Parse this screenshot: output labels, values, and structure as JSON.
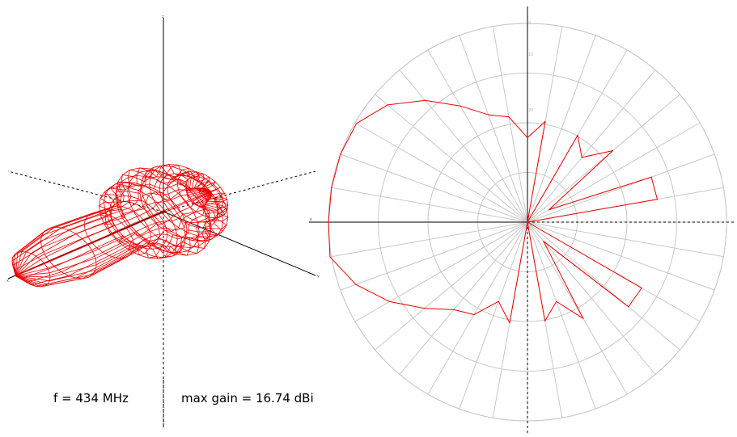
{
  "info": {
    "frequency": "f = 434 MHz",
    "max_gain": "max gain = 16.74 dBi"
  },
  "axes3d": {
    "x": "x",
    "y": "y",
    "z": "z"
  },
  "colors": {
    "pattern": "#ee0000",
    "grid": "#c8c8c8",
    "axis": "#000000"
  },
  "chart_data": [
    {
      "type": "surface3d",
      "title": "",
      "description_axes": [
        "x",
        "y",
        "z"
      ],
      "max_gain_dbi": 16.74,
      "main_lobe_direction": "x"
    },
    {
      "type": "polar",
      "title": "",
      "axis_label": "x",
      "rings_db": [
        -30,
        -20,
        -10,
        0
      ],
      "ring_tick_labels": [
        "20",
        "10",
        "0"
      ],
      "radial_spokes_deg": 10,
      "r_range_db": [
        -40,
        0
      ],
      "grid": true,
      "angles_deg": [
        0,
        10,
        20,
        30,
        40,
        50,
        60,
        70,
        80,
        90,
        100,
        110,
        120,
        130,
        140,
        150,
        160,
        170,
        180,
        190,
        200,
        210,
        220,
        230,
        240,
        250,
        260,
        270,
        280,
        290,
        300,
        310,
        320,
        330,
        340,
        350
      ],
      "gain_db": [
        -40,
        -13.5,
        -13.5,
        -35,
        -17.6,
        -23,
        -19.8,
        -40,
        -19.4,
        -23,
        -18.5,
        -17,
        -13,
        -8,
        -3.3,
        -0.3,
        0,
        0,
        0,
        0.3,
        -3.3,
        -8,
        -13,
        -17,
        -18.5,
        -23,
        -19.4,
        -40,
        -19.8,
        -23,
        -17.6,
        -35,
        -13.5,
        -13.5,
        -40,
        -40
      ]
    }
  ]
}
